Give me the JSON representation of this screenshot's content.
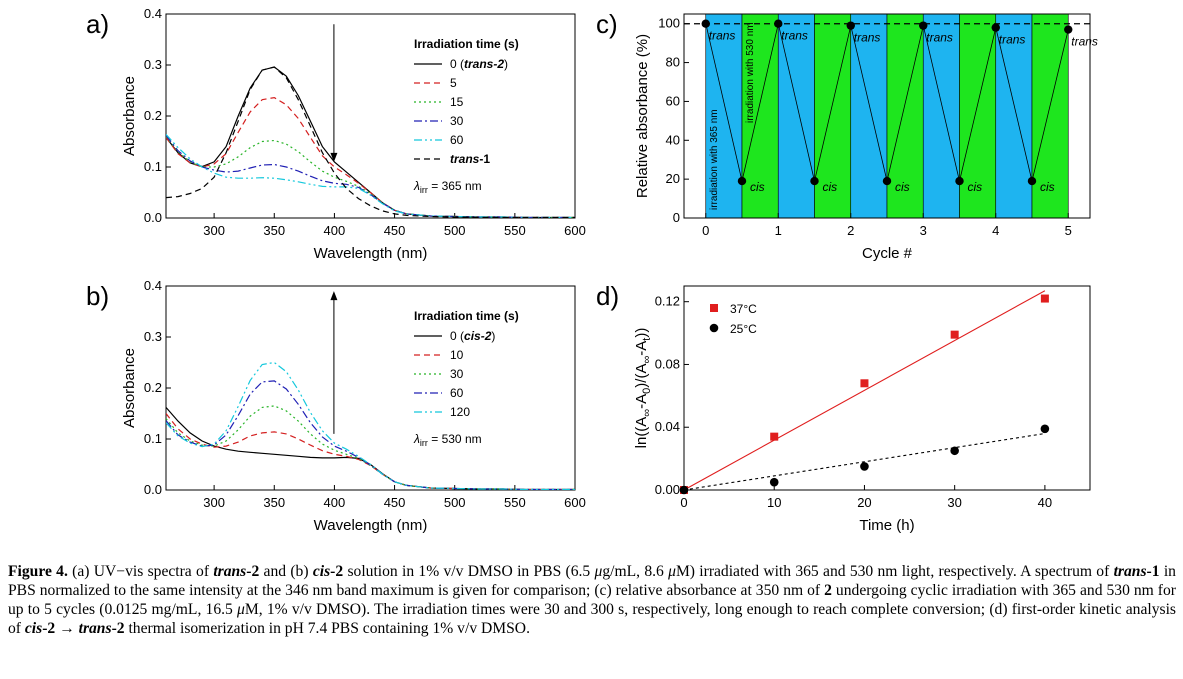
{
  "chart_data": [
    {
      "panel": "a)",
      "type": "line",
      "xlabel": "Wavelength (nm)",
      "ylabel": "Absorbance",
      "xlim": [
        260,
        600
      ],
      "ylim": [
        0,
        0.4
      ],
      "xticks": [
        300,
        350,
        400,
        450,
        500,
        550,
        600
      ],
      "yticks": [
        0.0,
        0.1,
        0.2,
        0.3,
        0.4
      ],
      "x": [
        260,
        270,
        280,
        290,
        300,
        310,
        320,
        330,
        340,
        350,
        360,
        370,
        380,
        390,
        400,
        410,
        420,
        430,
        440,
        450,
        460,
        480,
        500,
        520,
        540,
        560,
        580,
        600
      ],
      "legend_title": "Irradiation time (s)",
      "legend_position": "right",
      "series": [
        {
          "name": "0 (trans-2)",
          "name_plain": "0 (",
          "name_em": "trans-2",
          "name_tail": ")",
          "color": "#000000",
          "dash": "",
          "values": [
            0.158,
            0.128,
            0.108,
            0.101,
            0.11,
            0.14,
            0.2,
            0.255,
            0.29,
            0.296,
            0.278,
            0.24,
            0.19,
            0.14,
            0.11,
            0.09,
            0.07,
            0.05,
            0.03,
            0.015,
            0.008,
            0.004,
            0.003,
            0.002,
            0.002,
            0.001,
            0.001,
            0.001
          ]
        },
        {
          "name": "5",
          "color": "#d42020",
          "dash": "6,4",
          "values": [
            0.158,
            0.126,
            0.108,
            0.1,
            0.106,
            0.126,
            0.168,
            0.208,
            0.232,
            0.236,
            0.222,
            0.195,
            0.158,
            0.122,
            0.1,
            0.085,
            0.068,
            0.05,
            0.03,
            0.015,
            0.008,
            0.004,
            0.003,
            0.002,
            0.002,
            0.001,
            0.001,
            0.001
          ]
        },
        {
          "name": "15",
          "color": "#28b428",
          "dash": "2,3",
          "values": [
            0.16,
            0.13,
            0.11,
            0.1,
            0.1,
            0.106,
            0.12,
            0.138,
            0.15,
            0.152,
            0.145,
            0.13,
            0.11,
            0.092,
            0.08,
            0.072,
            0.062,
            0.048,
            0.03,
            0.015,
            0.008,
            0.004,
            0.003,
            0.002,
            0.002,
            0.001,
            0.001,
            0.001
          ]
        },
        {
          "name": "30",
          "color": "#2020b4",
          "dash": "8,3,2,3",
          "values": [
            0.162,
            0.132,
            0.112,
            0.1,
            0.094,
            0.09,
            0.092,
            0.098,
            0.104,
            0.105,
            0.1,
            0.092,
            0.082,
            0.073,
            0.068,
            0.066,
            0.06,
            0.046,
            0.029,
            0.015,
            0.008,
            0.004,
            0.003,
            0.002,
            0.002,
            0.001,
            0.001,
            0.001
          ]
        },
        {
          "name": "60",
          "color": "#14c8dc",
          "dash": "8,3,2,3,2,3",
          "values": [
            0.164,
            0.138,
            0.116,
            0.1,
            0.088,
            0.08,
            0.078,
            0.078,
            0.079,
            0.078,
            0.075,
            0.071,
            0.066,
            0.062,
            0.061,
            0.061,
            0.058,
            0.045,
            0.028,
            0.014,
            0.008,
            0.004,
            0.003,
            0.002,
            0.002,
            0.001,
            0.001,
            0.001
          ]
        },
        {
          "name": "trans-1",
          "name_plain": "",
          "name_em": "trans",
          "name_tail": "-1",
          "color": "#000000",
          "dash": "6,4",
          "values": [
            0.04,
            0.042,
            0.048,
            0.058,
            0.08,
            0.128,
            0.19,
            0.252,
            0.29,
            0.296,
            0.275,
            0.232,
            0.18,
            0.128,
            0.088,
            0.058,
            0.038,
            0.024,
            0.014,
            0.008,
            0.005,
            0.003,
            0.002,
            0.001,
            0.001,
            0.001,
            0.001,
            0.001
          ]
        }
      ],
      "arrow": {
        "x": 350,
        "y_from": 0.38,
        "y_to": 0.11,
        "x_offset": 50
      },
      "annotation": {
        "symbol": "λ",
        "sub": "irr",
        "text": " = 365 nm"
      }
    },
    {
      "panel": "b)",
      "type": "line",
      "xlabel": "Wavelength (nm)",
      "ylabel": "Absorbance",
      "xlim": [
        260,
        600
      ],
      "ylim": [
        0,
        0.4
      ],
      "xticks": [
        300,
        350,
        400,
        450,
        500,
        550,
        600
      ],
      "yticks": [
        0.0,
        0.1,
        0.2,
        0.3,
        0.4
      ],
      "x": [
        260,
        270,
        280,
        290,
        300,
        310,
        320,
        330,
        340,
        350,
        360,
        370,
        380,
        390,
        400,
        410,
        420,
        430,
        440,
        450,
        460,
        480,
        500,
        520,
        540,
        560,
        580,
        600
      ],
      "legend_title": "Irradiation time (s)",
      "legend_position": "right",
      "series": [
        {
          "name": "0 (cis-2)",
          "name_plain": "0 (",
          "name_em": "cis-2",
          "name_tail": ")",
          "color": "#000000",
          "dash": "",
          "values": [
            0.162,
            0.135,
            0.112,
            0.096,
            0.086,
            0.08,
            0.076,
            0.074,
            0.072,
            0.07,
            0.068,
            0.066,
            0.064,
            0.063,
            0.063,
            0.064,
            0.062,
            0.05,
            0.032,
            0.016,
            0.009,
            0.004,
            0.003,
            0.002,
            0.002,
            0.001,
            0.001,
            0.001
          ]
        },
        {
          "name": "10",
          "color": "#d42020",
          "dash": "6,4",
          "values": [
            0.15,
            0.12,
            0.1,
            0.09,
            0.084,
            0.086,
            0.094,
            0.106,
            0.112,
            0.114,
            0.11,
            0.1,
            0.088,
            0.077,
            0.07,
            0.066,
            0.06,
            0.048,
            0.031,
            0.016,
            0.009,
            0.004,
            0.003,
            0.002,
            0.002,
            0.001,
            0.001,
            0.001
          ]
        },
        {
          "name": "30",
          "color": "#28b428",
          "dash": "2,3",
          "values": [
            0.14,
            0.112,
            0.096,
            0.088,
            0.086,
            0.096,
            0.118,
            0.145,
            0.162,
            0.165,
            0.155,
            0.135,
            0.11,
            0.09,
            0.078,
            0.07,
            0.062,
            0.048,
            0.031,
            0.016,
            0.009,
            0.004,
            0.003,
            0.002,
            0.002,
            0.001,
            0.001,
            0.001
          ]
        },
        {
          "name": "60",
          "color": "#2020b4",
          "dash": "8,3,2,3",
          "values": [
            0.136,
            0.108,
            0.094,
            0.086,
            0.088,
            0.108,
            0.146,
            0.188,
            0.212,
            0.214,
            0.198,
            0.168,
            0.132,
            0.104,
            0.086,
            0.076,
            0.064,
            0.049,
            0.031,
            0.016,
            0.009,
            0.004,
            0.003,
            0.002,
            0.002,
            0.001,
            0.001,
            0.001
          ]
        },
        {
          "name": "120",
          "color": "#14c8dc",
          "dash": "8,3,2,3,2,3",
          "values": [
            0.132,
            0.106,
            0.092,
            0.085,
            0.09,
            0.116,
            0.164,
            0.215,
            0.246,
            0.25,
            0.232,
            0.196,
            0.152,
            0.116,
            0.092,
            0.08,
            0.066,
            0.05,
            0.031,
            0.016,
            0.009,
            0.004,
            0.003,
            0.002,
            0.002,
            0.001,
            0.001,
            0.001
          ]
        }
      ],
      "arrow": {
        "x": 350,
        "y_from": 0.11,
        "y_to": 0.39,
        "x_offset": 50
      },
      "annotation": {
        "symbol": "λ",
        "sub": "irr",
        "text": " = 530 nm"
      }
    },
    {
      "panel": "c)",
      "type": "line",
      "xlabel": "Cycle #",
      "ylabel": "Relative absorbance (%)",
      "xlim": [
        -0.3,
        5.3
      ],
      "ylim": [
        0,
        105
      ],
      "xticks": [
        0,
        1,
        2,
        3,
        4,
        5
      ],
      "yticks": [
        0,
        20,
        40,
        60,
        80,
        100
      ],
      "x": [
        0,
        0.5,
        1,
        1.5,
        2,
        2.5,
        3,
        3.5,
        4,
        4.5,
        5
      ],
      "values": [
        100,
        19,
        100,
        19,
        99,
        19,
        99,
        19,
        98,
        19,
        97
      ],
      "point_labels": [
        "trans",
        "cis",
        "trans",
        "cis",
        "trans",
        "cis",
        "trans",
        "cis",
        "trans",
        "cis",
        "trans"
      ],
      "reference_line": 100,
      "bands": [
        {
          "from": 0,
          "to": 0.5,
          "color": "#1eb4f0"
        },
        {
          "from": 0.5,
          "to": 1,
          "color": "#1ee61e"
        },
        {
          "from": 1,
          "to": 1.5,
          "color": "#1eb4f0"
        },
        {
          "from": 1.5,
          "to": 2,
          "color": "#1ee61e"
        },
        {
          "from": 2,
          "to": 2.5,
          "color": "#1eb4f0"
        },
        {
          "from": 2.5,
          "to": 3,
          "color": "#1ee61e"
        },
        {
          "from": 3,
          "to": 3.5,
          "color": "#1eb4f0"
        },
        {
          "from": 3.5,
          "to": 4,
          "color": "#1ee61e"
        },
        {
          "from": 4,
          "to": 4.5,
          "color": "#1eb4f0"
        },
        {
          "from": 4.5,
          "to": 5,
          "color": "#1ee61e"
        }
      ],
      "band_labels": [
        "irradiation with 365 nm",
        "irradiation with 530 nm"
      ]
    },
    {
      "panel": "d)",
      "type": "scatter",
      "xlabel": "Time (h)",
      "ylabel_main": "ln((A",
      "ylabel_parts": [
        "ln((A",
        "∞",
        "-A",
        "0",
        ")/(A",
        "∞",
        "-A",
        "t",
        "))"
      ],
      "xlim": [
        0,
        45
      ],
      "ylim": [
        0,
        0.13
      ],
      "xticks": [
        0,
        10,
        20,
        30,
        40
      ],
      "yticks": [
        0.0,
        0.04,
        0.08,
        0.12
      ],
      "ytick_labels": [
        "0.00",
        "0.04",
        "0.08",
        "0.12"
      ],
      "legend_position": "top-left",
      "series": [
        {
          "name": "37°C",
          "marker": "square",
          "color": "#e01e1e",
          "line_color": "#e01e1e",
          "line_dash": "",
          "x": [
            0,
            10,
            20,
            30,
            40
          ],
          "values": [
            0.0,
            0.034,
            0.068,
            0.099,
            0.122
          ],
          "fit": [
            [
              0,
              0.0
            ],
            [
              40,
              0.127
            ]
          ]
        },
        {
          "name": "25°C",
          "marker": "circle",
          "color": "#000000",
          "line_color": "#000000",
          "line_dash": "3,3",
          "x": [
            0,
            10,
            20,
            30,
            40
          ],
          "values": [
            0.0,
            0.005,
            0.015,
            0.025,
            0.039
          ],
          "fit": [
            [
              0,
              0.0
            ],
            [
              40,
              0.036
            ]
          ]
        }
      ]
    }
  ],
  "caption": {
    "label": "Figure 4.",
    "segments": [
      {
        "t": " (a) UV−vis spectra of ",
        "s": ""
      },
      {
        "t": "trans",
        "s": "bi"
      },
      {
        "t": "-",
        "s": "b"
      },
      {
        "t": "2",
        "s": "b"
      },
      {
        "t": " and (b) ",
        "s": ""
      },
      {
        "t": "cis",
        "s": "bi"
      },
      {
        "t": "-",
        "s": "b"
      },
      {
        "t": "2",
        "s": "b"
      },
      {
        "t": " solution in 1% v/v DMSO in PBS (6.5 ",
        "s": ""
      },
      {
        "t": "μ",
        "s": "i"
      },
      {
        "t": "g/mL, 8.6 ",
        "s": ""
      },
      {
        "t": "μ",
        "s": "i"
      },
      {
        "t": "M) irradiated with 365 and 530 nm light, respectively. A spectrum of ",
        "s": ""
      },
      {
        "t": "trans",
        "s": "bi"
      },
      {
        "t": "-",
        "s": "b"
      },
      {
        "t": "1",
        "s": "b"
      },
      {
        "t": " in PBS normalized to the same intensity at the 346 nm band maximum is given for comparison; (c) relative absorbance at 350 nm of ",
        "s": ""
      },
      {
        "t": "2",
        "s": "b"
      },
      {
        "t": " undergoing cyclic irradiation with 365 and 530 nm for up to 5 cycles (0.0125 mg/mL, 16.5 ",
        "s": ""
      },
      {
        "t": "μ",
        "s": "i"
      },
      {
        "t": "M, 1% v/v DMSO). The irradiation times were 30 and 300 s, respectively, long enough to reach complete conversion; (d) first-order kinetic analysis of ",
        "s": ""
      },
      {
        "t": "cis",
        "s": "bi"
      },
      {
        "t": "-",
        "s": "b"
      },
      {
        "t": "2",
        "s": "b"
      },
      {
        "t": " → ",
        "s": ""
      },
      {
        "t": "trans",
        "s": "bi"
      },
      {
        "t": "-",
        "s": "b"
      },
      {
        "t": "2",
        "s": "b"
      },
      {
        "t": " thermal isomerization in pH 7.4 PBS containing 1% v/v DMSO.",
        "s": ""
      }
    ]
  }
}
